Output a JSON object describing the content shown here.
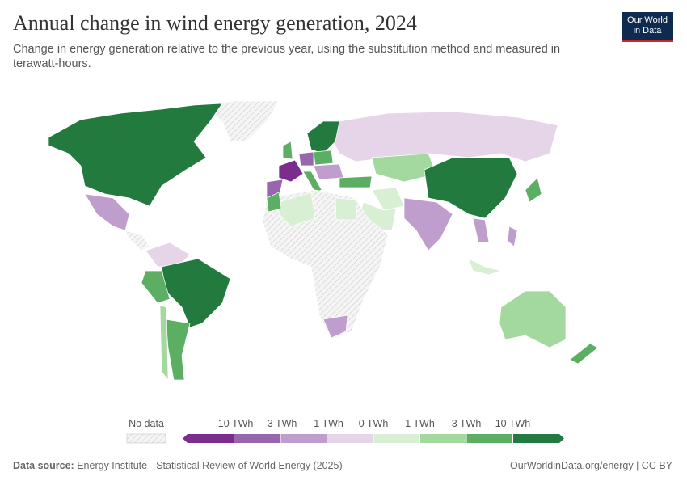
{
  "header": {
    "title": "Annual change in wind energy generation, 2024",
    "subtitle": "Change in energy generation relative to the previous year, using the substitution method and measured in terawatt-hours.",
    "logo": [
      "Our World",
      "in Data"
    ]
  },
  "legend": {
    "no_data": "No data",
    "labels": [
      "-10 TWh",
      "-3 TWh",
      "-1 TWh",
      "0 TWh",
      "1 TWh",
      "3 TWh",
      "10 TWh"
    ],
    "colors": [
      "#7b2d8e",
      "#9866ad",
      "#bf9dcc",
      "#e6d4e8",
      "#d9efd4",
      "#a3d99e",
      "#5cae63",
      "#237a3e"
    ]
  },
  "footer": {
    "source_label": "Data source:",
    "source": "Energy Institute - Statistical Review of World Energy (2025)",
    "link": "OurWorldinData.org/energy | CC BY"
  }
}
